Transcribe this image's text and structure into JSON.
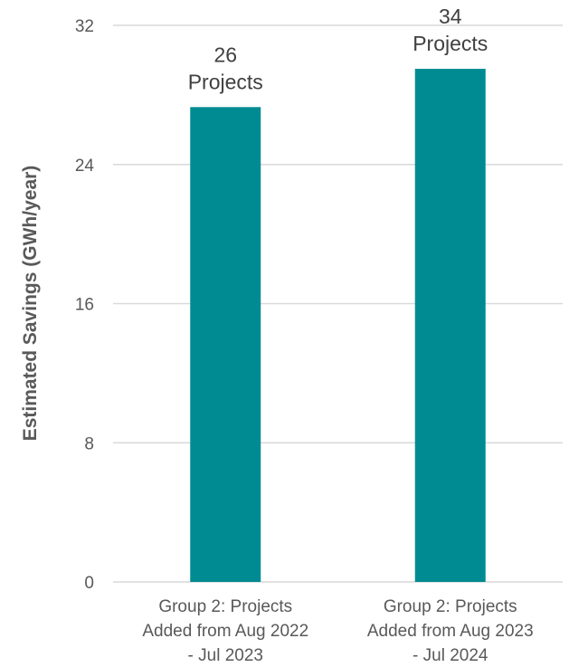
{
  "chart_data": {
    "type": "bar",
    "title": "",
    "ylabel": "Estimated Savings (GWh/year)",
    "xlabel": "",
    "ylim": [
      0,
      32
    ],
    "yticks": [
      0,
      8,
      16,
      24,
      32
    ],
    "grid": true,
    "bar_color": "#008B92",
    "categories": [
      "Group 2:  Projects Added from Aug 2022 - Jul 2023",
      "Group 2:  Projects Added from Aug 2023 - Jul 2024"
    ],
    "category_lines": [
      [
        "Group 2:  Projects",
        "Added from Aug 2022",
        "- Jul 2023"
      ],
      [
        "Group 2:  Projects",
        "Added from Aug 2023",
        "- Jul 2024"
      ]
    ],
    "values": [
      27.3,
      29.5
    ],
    "data_labels": [
      [
        "26",
        "Projects"
      ],
      [
        "34",
        "Projects"
      ]
    ]
  }
}
